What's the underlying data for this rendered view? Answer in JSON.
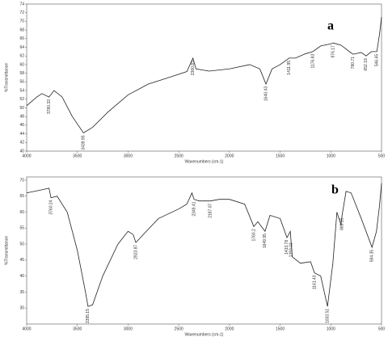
{
  "chart_data": [
    {
      "type": "line",
      "label": "a",
      "x_label": "Wavenumbers (cm-1)",
      "y_label": "%Transmittance",
      "xlim": [
        4000,
        500
      ],
      "xticks": [
        4000,
        3500,
        3000,
        2500,
        2000,
        1500,
        1000,
        500
      ],
      "ylim": [
        40,
        74
      ],
      "yticks": [
        40,
        42,
        44,
        46,
        48,
        50,
        52,
        54,
        56,
        58,
        60,
        62,
        64,
        66,
        68,
        70,
        72,
        74
      ],
      "series": [
        {
          "color": "#222222",
          "x": [
            4000,
            3900,
            3850,
            3780,
            3730,
            3650,
            3550,
            3440,
            3350,
            3200,
            3000,
            2800,
            2600,
            2420,
            2360,
            2330,
            2200,
            2000,
            1800,
            1700,
            1640,
            1580,
            1500,
            1411,
            1350,
            1250,
            1178,
            1100,
            1000,
            976,
            900,
            800,
            780,
            700,
            652,
            600,
            546,
            520,
            500
          ],
          "values": [
            50.5,
            52.5,
            53.3,
            52.5,
            54,
            52.5,
            48,
            44.2,
            45.5,
            49,
            53,
            55.5,
            57,
            58.4,
            61.5,
            59,
            58.5,
            59,
            60,
            59,
            55.5,
            59,
            60,
            61.5,
            61.5,
            62.5,
            63,
            64.3,
            64.8,
            65,
            64.5,
            62.7,
            62.4,
            62.8,
            62,
            63,
            63,
            67,
            71
          ]
        }
      ],
      "peaks": [
        3780.33,
        3439.95,
        2360.83,
        1640.43,
        1411.95,
        1176.83,
        976.17,
        780.71,
        652.19,
        546.65
      ]
    },
    {
      "type": "line",
      "label": "b",
      "x_label": "Wavenumbers (cm-1)",
      "y_label": "%Transmittance",
      "xlim": [
        4000,
        500
      ],
      "xticks": [
        4000,
        3500,
        3000,
        2500,
        2000,
        1500,
        1000,
        500
      ],
      "ylim": [
        25,
        71
      ],
      "yticks": [
        30,
        35,
        40,
        45,
        50,
        55,
        60,
        65,
        70
      ],
      "series": [
        {
          "color": "#222222",
          "x": [
            4000,
            3850,
            3780,
            3760,
            3700,
            3600,
            3500,
            3420,
            3395,
            3350,
            3250,
            3100,
            3000,
            2950,
            2923,
            2850,
            2700,
            2500,
            2420,
            2370,
            2349,
            2300,
            2187,
            2100,
            2000,
            1850,
            1760,
            1720,
            1649,
            1600,
            1500,
            1433,
            1400,
            1380,
            1300,
            1200,
            1161,
            1100,
            1033,
            980,
            940,
            900,
            889,
            850,
            800,
            700,
            594,
            550,
            520,
            500
          ],
          "values": [
            66,
            67,
            67.5,
            64.5,
            65,
            60,
            48,
            35,
            30.5,
            31,
            40,
            50,
            54,
            53,
            50.5,
            53,
            58,
            61,
            62.5,
            66,
            64,
            63.5,
            63.5,
            64,
            64,
            62.5,
            55.5,
            57,
            54,
            59,
            58,
            52,
            54,
            46,
            44,
            44.5,
            41,
            40,
            30.5,
            44,
            60,
            56,
            59,
            66.5,
            66,
            58,
            49,
            54,
            62,
            69
          ]
        }
      ],
      "peaks": [
        3760.24,
        3395.15,
        2923.87,
        2349.41,
        2187.07,
        1760.2,
        1649.95,
        1433.78,
        1393.03,
        1161.43,
        1033.51,
        889.15,
        594.35
      ]
    }
  ]
}
